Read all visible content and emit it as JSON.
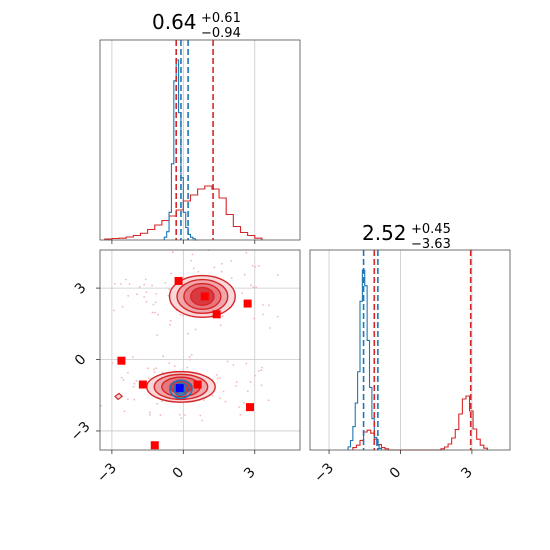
{
  "chart_data": {
    "type": "corner",
    "colors": {
      "blue": "#1f77b4",
      "red": "#d62728",
      "marker_red": "#ff0000",
      "marker_blue": "#0000ff"
    },
    "grid": true,
    "param1": {
      "title_value": "0.64",
      "title_plus": "+0.61",
      "title_minus": "−0.94",
      "xlim": [
        -3.5,
        4.9
      ],
      "ticks": [
        -3,
        0,
        3
      ],
      "tick_labels": [
        "−3",
        "0",
        "3"
      ]
    },
    "param2": {
      "title_value": "2.52",
      "title_plus": "+0.45",
      "title_minus": "−3.63",
      "xlim": [
        -3.8,
        4.6
      ],
      "ticks": [
        -3,
        0,
        3
      ],
      "tick_labels": [
        "−3",
        "0",
        "3"
      ]
    },
    "joint": {
      "xlim": [
        -3.5,
        4.9
      ],
      "ylim": [
        -3.8,
        4.6
      ],
      "xticks": [
        -3,
        0,
        3
      ],
      "xtick_labels": [
        "−3",
        "0",
        "3"
      ],
      "yticks": [
        -3,
        0,
        3
      ],
      "ytick_labels": [
        "−3",
        "0",
        "3"
      ]
    },
    "hist1_blue": {
      "bins": [
        -0.8,
        -0.7,
        -0.6,
        -0.5,
        -0.4,
        -0.3,
        -0.2,
        -0.1,
        0.0,
        0.1,
        0.2,
        0.3,
        0.4,
        0.5,
        0.6
      ],
      "counts": [
        0.02,
        0.06,
        0.2,
        0.55,
        1.15,
        1.3,
        0.92,
        0.45,
        0.2,
        0.09,
        0.04,
        0.02,
        0.01,
        0.0
      ]
    },
    "hist1_red": {
      "bins": [
        -3.3,
        -3.0,
        -2.7,
        -2.4,
        -2.1,
        -1.8,
        -1.5,
        -1.2,
        -0.9,
        -0.6,
        -0.3,
        0.0,
        0.3,
        0.6,
        0.9,
        1.2,
        1.5,
        1.8,
        2.1,
        2.4,
        2.7,
        3.0,
        3.3
      ],
      "counts": [
        0.006,
        0.01,
        0.012,
        0.02,
        0.03,
        0.045,
        0.07,
        0.1,
        0.13,
        0.16,
        0.2,
        0.26,
        0.3,
        0.34,
        0.36,
        0.34,
        0.28,
        0.17,
        0.09,
        0.05,
        0.03,
        0.012
      ]
    },
    "hist1_lines": {
      "red": [
        -0.3,
        1.25
      ],
      "blue": [
        -0.1,
        0.2
      ]
    },
    "hist2_blue": {
      "bins": [
        -2.2,
        -2.1,
        -2.0,
        -1.9,
        -1.8,
        -1.7,
        -1.6,
        -1.5,
        -1.4,
        -1.3,
        -1.2,
        -1.1,
        -1.0,
        -0.9,
        -0.8
      ],
      "counts": [
        0.02,
        0.06,
        0.15,
        0.3,
        0.5,
        0.95,
        1.15,
        1.05,
        0.7,
        0.4,
        0.2,
        0.08,
        0.03,
        0.01
      ]
    },
    "hist2_red": {
      "bins": [
        -2.0,
        -1.85,
        -1.7,
        -1.55,
        -1.4,
        -1.25,
        -1.1,
        -0.95,
        -0.8,
        -0.65,
        -0.5,
        1.7,
        1.85,
        2.0,
        2.15,
        2.3,
        2.45,
        2.6,
        2.75,
        2.9,
        3.05,
        3.2,
        3.35,
        3.5,
        3.65
      ],
      "counts": [
        0.04,
        0.08,
        0.16,
        0.3,
        0.33,
        0.28,
        0.18,
        0.09,
        0.04,
        0.02,
        0,
        0.02,
        0.05,
        0.1,
        0.2,
        0.34,
        0.6,
        0.85,
        0.9,
        0.65,
        0.35,
        0.18,
        0.08,
        0.03
      ]
    },
    "hist2_lines": {
      "red": [
        -1.1,
        2.95
      ],
      "blue": [
        -1.55,
        -0.95
      ]
    },
    "blue_contour_center": [
      -0.1,
      -1.25
    ],
    "red_clusters": [
      {
        "center": [
          0.8,
          2.65
        ],
        "rx": [
          2.4,
          1.85,
          1.35,
          0.85
        ],
        "ry": [
          1.3,
          1.05,
          0.8,
          0.55
        ]
      },
      {
        "center": [
          -0.1,
          -1.15
        ],
        "rx": [
          2.5,
          1.95,
          1.4,
          0.8
        ],
        "ry": [
          0.95,
          0.78,
          0.6,
          0.38
        ]
      }
    ],
    "red_squares": [
      [
        -0.2,
        3.3
      ],
      [
        0.9,
        2.65
      ],
      [
        2.7,
        2.35
      ],
      [
        1.4,
        1.9
      ],
      [
        -2.6,
        -0.05
      ],
      [
        -1.7,
        -1.05
      ],
      [
        0.6,
        -1.05
      ],
      [
        2.8,
        -2.0
      ],
      [
        -1.2,
        -3.6
      ]
    ],
    "blue_square": [
      -0.15,
      -1.2
    ]
  }
}
